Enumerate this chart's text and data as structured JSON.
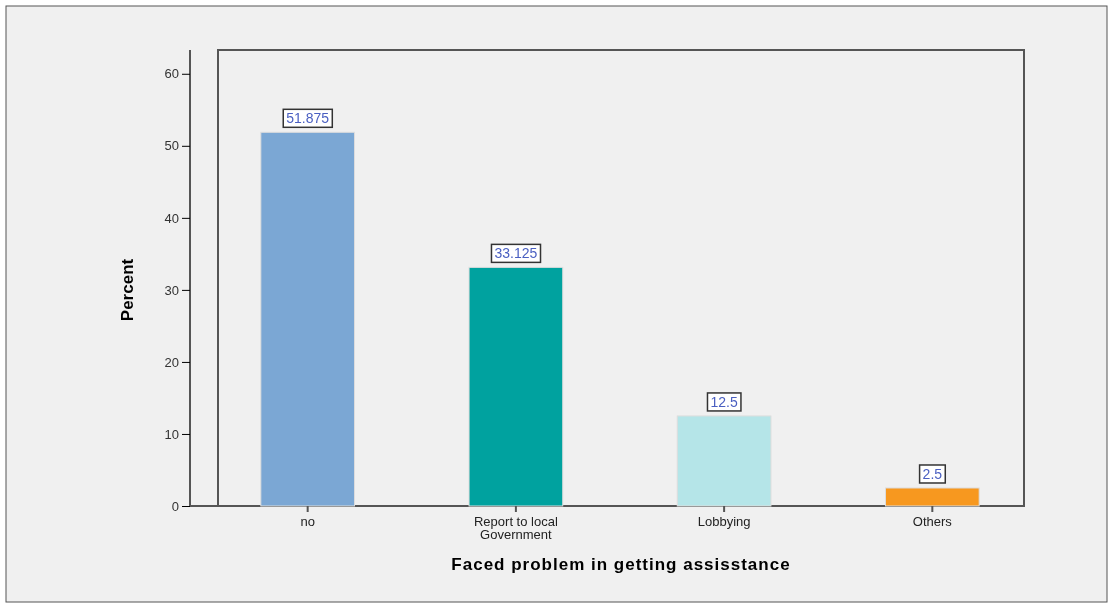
{
  "chart_data": {
    "type": "bar",
    "xlabel": "Faced problem in getting assisstance",
    "ylabel": "Percent",
    "categories": [
      "no",
      "Report to local Government",
      "Lobbying",
      "Others"
    ],
    "values": [
      51.875,
      33.125,
      12.5,
      2.5
    ],
    "colors": [
      "#7ba7d4",
      "#00a29f",
      "#b5e5e8",
      "#f7981f"
    ],
    "ylim": [
      0,
      63.3
    ],
    "yticks": [
      0,
      10,
      20,
      30,
      40,
      50,
      60
    ],
    "data_labels": true
  }
}
